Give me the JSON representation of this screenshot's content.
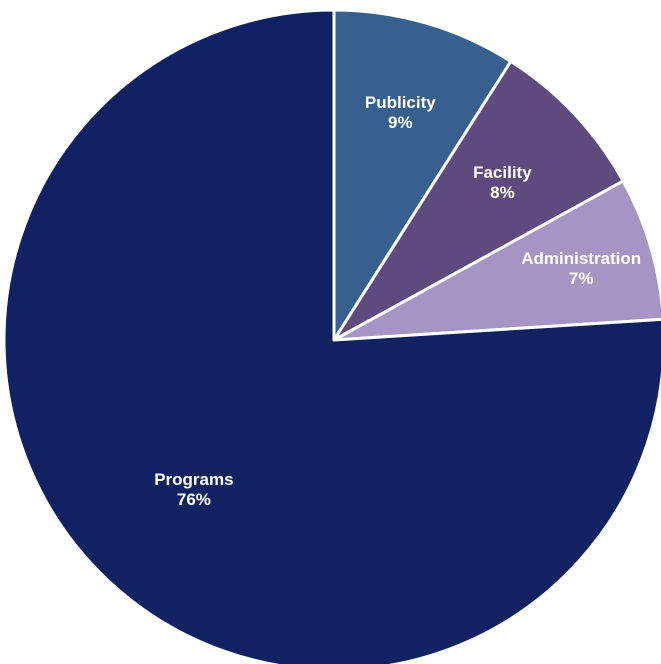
{
  "chart_data": {
    "type": "pie",
    "start_angle_deg": 0,
    "direction": "clockwise",
    "slices": [
      {
        "label": "Publicity",
        "value": 9,
        "value_label": "9%",
        "color": "#38608f"
      },
      {
        "label": "Facility",
        "value": 8,
        "value_label": "8%",
        "color": "#5f4a7d"
      },
      {
        "label": "Administration",
        "value": 7,
        "value_label": "7%",
        "color": "#a695c4"
      },
      {
        "label": "Programs",
        "value": 76,
        "value_label": "76%",
        "color": "#112262"
      }
    ],
    "legend": "none",
    "data_labels": "inside"
  }
}
